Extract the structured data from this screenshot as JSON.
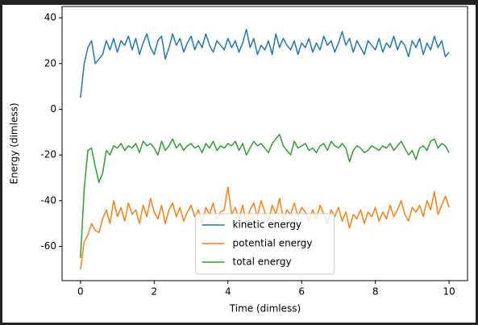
{
  "chart_data": {
    "type": "line",
    "xlabel": "Time (dimless)",
    "ylabel": "Energy (dimless)",
    "x": [
      0,
      0.1,
      0.2,
      0.3,
      0.4,
      0.5,
      0.6,
      0.7,
      0.8,
      0.9,
      1,
      1.1,
      1.2,
      1.3,
      1.4,
      1.5,
      1.6,
      1.7,
      1.8,
      1.9,
      2,
      2.1,
      2.2,
      2.3,
      2.4,
      2.5,
      2.6,
      2.7,
      2.8,
      2.9,
      3,
      3.1,
      3.2,
      3.3,
      3.4,
      3.5,
      3.6,
      3.7,
      3.8,
      3.9,
      4,
      4.1,
      4.2,
      4.3,
      4.4,
      4.5,
      4.6,
      4.7,
      4.8,
      4.9,
      5,
      5.1,
      5.2,
      5.3,
      5.4,
      5.5,
      5.6,
      5.7,
      5.8,
      5.9,
      6,
      6.1,
      6.2,
      6.3,
      6.4,
      6.5,
      6.6,
      6.7,
      6.8,
      6.9,
      7,
      7.1,
      7.2,
      7.3,
      7.4,
      7.5,
      7.6,
      7.7,
      7.8,
      7.9,
      8,
      8.1,
      8.2,
      8.3,
      8.4,
      8.5,
      8.6,
      8.7,
      8.8,
      8.9,
      9,
      9.1,
      9.2,
      9.3,
      9.4,
      9.5,
      9.6,
      9.7,
      9.8,
      9.9,
      10
    ],
    "series": [
      {
        "name": "kinetic energy",
        "color": "#1f77b4",
        "values": [
          5,
          20,
          27,
          30,
          20,
          22,
          24,
          30,
          26,
          31,
          25,
          30,
          28,
          32,
          26,
          31,
          24,
          29,
          33,
          27,
          24,
          30,
          32,
          22,
          27,
          33,
          28,
          31,
          25,
          29,
          32,
          26,
          30,
          27,
          33,
          28,
          25,
          30,
          28,
          26,
          31,
          27,
          30,
          25,
          29,
          35,
          27,
          31,
          24,
          28,
          26,
          30,
          24,
          33,
          27,
          31,
          28,
          26,
          30,
          24,
          29,
          27,
          31,
          25,
          29,
          26,
          32,
          28,
          30,
          25,
          29,
          34,
          28,
          31,
          25,
          30,
          27,
          24,
          30,
          28,
          26,
          31,
          25,
          29,
          27,
          32,
          26,
          30,
          28,
          23,
          30,
          27,
          31,
          24,
          29,
          26,
          32,
          27,
          30,
          23,
          25
        ]
      },
      {
        "name": "potential energy",
        "color": "#ff7f0e",
        "values": [
          -70,
          -58,
          -55,
          -50,
          -53,
          -54,
          -48,
          -44,
          -50,
          -40,
          -47,
          -43,
          -49,
          -41,
          -46,
          -44,
          -50,
          -42,
          -47,
          -39,
          -45,
          -48,
          -42,
          -50,
          -44,
          -41,
          -47,
          -43,
          -49,
          -45,
          -42,
          -47,
          -44,
          -50,
          -43,
          -46,
          -41,
          -48,
          -45,
          -44,
          -34,
          -46,
          -43,
          -48,
          -42,
          -50,
          -44,
          -41,
          -47,
          -40,
          -45,
          -49,
          -42,
          -46,
          -39,
          -48,
          -44,
          -46,
          -41,
          -47,
          -43,
          -45,
          -49,
          -44,
          -48,
          -42,
          -46,
          -50,
          -44,
          -47,
          -43,
          -49,
          -45,
          -52,
          -46,
          -48,
          -44,
          -50,
          -45,
          -47,
          -43,
          -49,
          -45,
          -48,
          -42,
          -47,
          -44,
          -40,
          -46,
          -49,
          -43,
          -45,
          -42,
          -47,
          -40,
          -44,
          -36,
          -46,
          -42,
          -38,
          -43
        ]
      },
      {
        "name": "total energy",
        "color": "#2ca02c",
        "values": [
          -65,
          -35,
          -18,
          -17,
          -25,
          -32,
          -28,
          -18,
          -20,
          -16,
          -17,
          -15,
          -18,
          -16,
          -17,
          -15,
          -19,
          -14,
          -16,
          -15,
          -17,
          -20,
          -14,
          -18,
          -16,
          -13,
          -17,
          -15,
          -18,
          -16,
          -15,
          -17,
          -16,
          -19,
          -15,
          -17,
          -14,
          -18,
          -16,
          -17,
          -15,
          -16,
          -14,
          -18,
          -15,
          -20,
          -17,
          -14,
          -16,
          -15,
          -17,
          -19,
          -15,
          -13,
          -11,
          -16,
          -18,
          -20,
          -14,
          -17,
          -16,
          -15,
          -18,
          -17,
          -19,
          -16,
          -15,
          -18,
          -14,
          -16,
          -17,
          -15,
          -17,
          -23,
          -18,
          -16,
          -17,
          -19,
          -18,
          -16,
          -17,
          -18,
          -16,
          -17,
          -15,
          -18,
          -16,
          -14,
          -17,
          -20,
          -18,
          -22,
          -17,
          -16,
          -18,
          -14,
          -13,
          -17,
          -15,
          -16,
          -19
        ]
      }
    ],
    "xlim": [
      -0.5,
      10.5
    ],
    "xticks": [
      0,
      2,
      4,
      6,
      8,
      10
    ],
    "ylim": [
      -75,
      45
    ],
    "yticks": [
      -60,
      -40,
      -20,
      0,
      20,
      40
    ],
    "grid": false,
    "legend": "lower center"
  }
}
